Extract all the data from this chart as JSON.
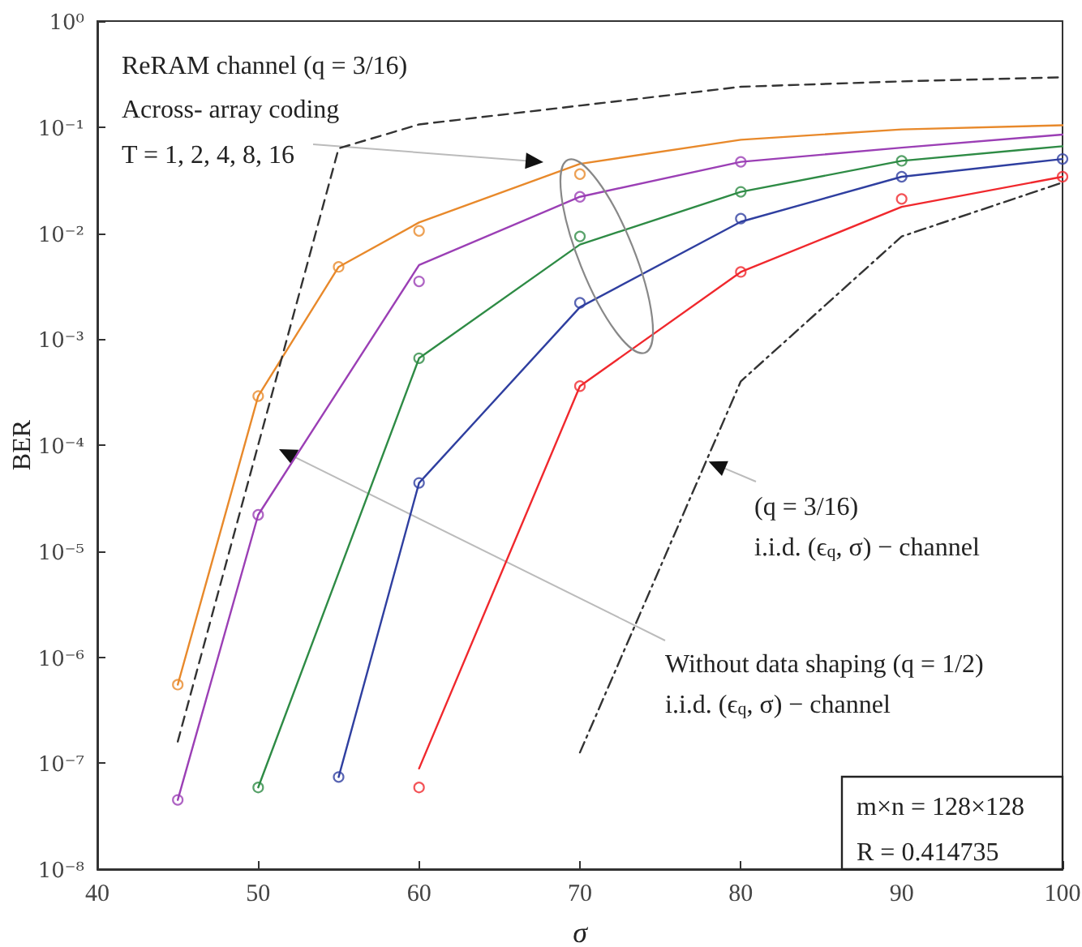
{
  "chart_data": {
    "type": "line",
    "xlabel": "σ",
    "ylabel": "BER",
    "log": "y",
    "grid": false,
    "xlim": [
      40,
      100
    ],
    "xticks": [
      40,
      50,
      60,
      70,
      80,
      90,
      100
    ],
    "ylim": [
      1e-08,
      1
    ],
    "yticks": [
      {
        "value": 1e-08,
        "label": "10⁻⁸"
      },
      {
        "value": 1e-07,
        "label": "10⁻⁷"
      },
      {
        "value": 1e-06,
        "label": "10⁻⁶"
      },
      {
        "value": 1e-05,
        "label": "10⁻⁵"
      },
      {
        "value": 0.0001,
        "label": "10⁻⁴"
      },
      {
        "value": 0.001,
        "label": "10⁻³"
      },
      {
        "value": 0.01,
        "label": "10⁻²"
      },
      {
        "value": 0.1,
        "label": "10⁻¹"
      },
      {
        "value": 1,
        "label": "10⁰"
      }
    ],
    "annotations": [
      "ReRAM channel (q = 3/16)",
      "Across- array coding",
      "T = 1, 2, 4, 8, 16",
      {
        "text": "(q = 3/16)",
        "x": 78,
        "y": 7e-05
      },
      "i.i.d. (ϵ$_{q}$, σ) − channel",
      "Without data shaping (q = 1/2)",
      "i.i.d. (ϵ$_{q}$, σ) − channel",
      "m×n = 128×128",
      "R = 0.414735"
    ],
    "series": [
      {
        "color": "#e8892b",
        "marker": "none",
        "line_style": "solid",
        "x": [
          45,
          50,
          55,
          60,
          70,
          80,
          90,
          100
        ],
        "values": [
          5.5e-07,
          0.00029,
          0.0048,
          0.0126,
          0.045,
          0.076,
          0.095,
          0.104
        ]
      },
      {
        "color": "#9b3fb5",
        "marker": "none",
        "line_style": "solid",
        "x": [
          45,
          50,
          60,
          70,
          80,
          90,
          100
        ],
        "values": [
          4.5e-08,
          2.2e-05,
          0.005,
          0.022,
          0.047,
          0.064,
          0.085
        ]
      },
      {
        "color": "#2e8b45",
        "marker": "none",
        "line_style": "solid",
        "x": [
          50,
          60,
          70,
          80,
          90,
          100
        ],
        "values": [
          5.9e-08,
          0.00066,
          0.0078,
          0.0245,
          0.048,
          0.066
        ]
      },
      {
        "color": "#2f3fa0",
        "marker": "none",
        "line_style": "solid",
        "x": [
          55,
          60,
          70,
          80,
          90,
          100
        ],
        "values": [
          7.4e-08,
          4.4e-05,
          0.002,
          0.0128,
          0.034,
          0.05
        ]
      },
      {
        "color": "#f0282d",
        "marker": "none",
        "line_style": "solid",
        "x": [
          60,
          70,
          80,
          90,
          100
        ],
        "values": [
          8.9e-08,
          0.00036,
          0.0043,
          0.0177,
          0.034
        ]
      },
      {
        "color": "#333333",
        "marker": "none",
        "line_style": "dashed",
        "x": [
          45,
          55,
          60,
          80,
          90,
          100
        ],
        "values": [
          1.6e-07,
          0.063,
          0.106,
          0.24,
          0.27,
          0.295
        ]
      },
      {
        "color": "#333333",
        "marker": "none",
        "line_style": "dashdot",
        "x": [
          70,
          80,
          90,
          100
        ],
        "values": [
          1.26e-07,
          0.0004,
          0.0093,
          0.03
        ]
      },
      {
        "type": "scatter",
        "color": "#e8892b",
        "marker": "circle",
        "x": [
          45,
          50,
          55,
          60,
          70
        ],
        "values": [
          5.5e-07,
          0.00029,
          0.0048,
          0.0105,
          0.036
        ]
      },
      {
        "type": "scatter",
        "color": "#9b3fb5",
        "marker": "circle",
        "x": [
          45,
          50,
          60,
          70,
          80
        ],
        "values": [
          4.5e-08,
          2.2e-05,
          0.0035,
          0.022,
          0.047
        ]
      },
      {
        "type": "scatter",
        "color": "#2e8b45",
        "marker": "circle",
        "x": [
          50,
          60,
          70,
          80,
          90
        ],
        "values": [
          5.9e-08,
          0.00066,
          0.0093,
          0.0245,
          0.048
        ]
      },
      {
        "type": "scatter",
        "color": "#2f3fa0",
        "marker": "circle",
        "x": [
          55,
          60,
          70,
          80,
          90,
          100
        ],
        "values": [
          7.4e-08,
          4.4e-05,
          0.0022,
          0.0137,
          0.034,
          0.05
        ]
      },
      {
        "type": "scatter",
        "color": "#f0282d",
        "marker": "circle",
        "x": [
          60,
          70,
          80,
          90,
          100
        ],
        "values": [
          5.9e-08,
          0.00036,
          0.0043,
          0.021,
          0.034
        ]
      }
    ]
  }
}
